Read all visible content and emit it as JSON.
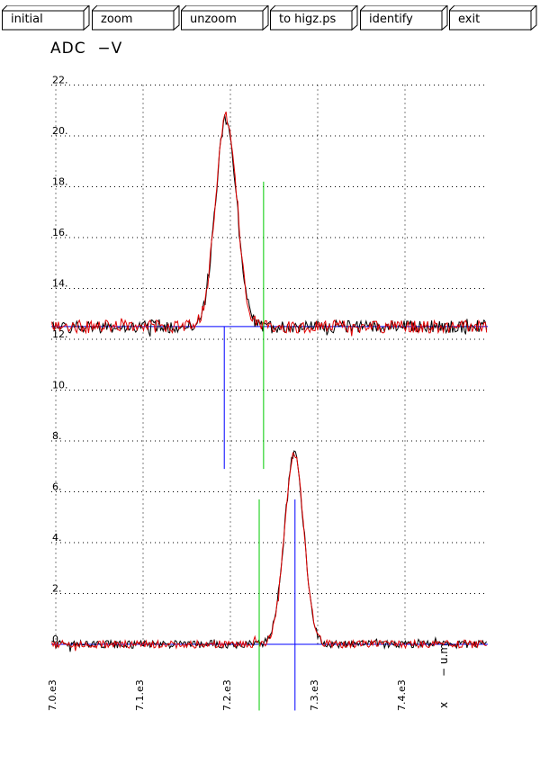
{
  "toolbar": {
    "buttons": [
      {
        "label": "initial"
      },
      {
        "label": "zoom"
      },
      {
        "label": "unzoom"
      },
      {
        "label": "to higz.ps"
      },
      {
        "label": "identify"
      },
      {
        "label": "exit"
      }
    ]
  },
  "chart_data": {
    "type": "line",
    "title": "ADC  −V",
    "xlabel": "x",
    "xlabel_units": "− u.m",
    "ylabel": "",
    "xlim": [
      7000,
      7500
    ],
    "ylim": [
      -0.5,
      22
    ],
    "x_ticks": [
      "7.0.e3",
      "7.1.e3",
      "7.2.e3",
      "7.3.e3",
      "7.4.e3"
    ],
    "x_tick_values": [
      7000,
      7100,
      7200,
      7300,
      7400
    ],
    "y_ticks": [
      "0.",
      "2.",
      "4.",
      "6.",
      "8.",
      "10.",
      "12.",
      "14.",
      "16.",
      "18.",
      "20.",
      "22."
    ],
    "y_tick_values": [
      0,
      2,
      4,
      6,
      8,
      10,
      12,
      14,
      16,
      18,
      20,
      22
    ],
    "grid": true,
    "colors": {
      "measured": "#000000",
      "fit": "#e00000",
      "baseline": "#0000ff",
      "peak_marker": "#0000ff",
      "reference_marker": "#00cc00"
    },
    "series": [
      {
        "baseline": 12.5,
        "noise": 0.25,
        "peak_center": 7195,
        "peak_amplitude": 8.2,
        "peak_sigma": 12,
        "peak_marker": {
          "x": 7193,
          "y_from": 6.9,
          "y_to": 12.5
        },
        "reference_marker": {
          "x": 7238,
          "y_from": 6.9,
          "y_to": 18.2
        }
      },
      {
        "baseline": 0.0,
        "noise": 0.15,
        "peak_center": 7273,
        "peak_amplitude": 7.5,
        "peak_sigma": 11,
        "peak_marker": {
          "x": 7274,
          "y_from": -2.6,
          "y_to": 5.7
        },
        "reference_marker": {
          "x": 7233,
          "y_from": -2.6,
          "y_to": 5.7
        }
      }
    ]
  }
}
